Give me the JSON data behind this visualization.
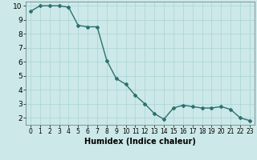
{
  "x": [
    0,
    1,
    2,
    3,
    4,
    5,
    6,
    7,
    8,
    9,
    10,
    11,
    12,
    13,
    14,
    15,
    16,
    17,
    18,
    19,
    20,
    21,
    22,
    23
  ],
  "y": [
    9.6,
    10.0,
    10.0,
    10.0,
    9.9,
    8.6,
    8.5,
    8.5,
    6.1,
    4.8,
    4.4,
    3.6,
    3.0,
    2.3,
    1.9,
    2.7,
    2.9,
    2.8,
    2.7,
    2.7,
    2.8,
    2.6,
    2.0,
    1.8
  ],
  "line_color": "#2d7070",
  "marker": "D",
  "marker_size": 2,
  "bg_color": "#cce8e8",
  "grid_color": "#aad4d4",
  "xlabel": "Humidex (Indice chaleur)",
  "ylim": [
    1.5,
    10.3
  ],
  "xlim": [
    -0.5,
    23.5
  ],
  "yticks": [
    2,
    3,
    4,
    5,
    6,
    7,
    8,
    9,
    10
  ],
  "xticks": [
    0,
    1,
    2,
    3,
    4,
    5,
    6,
    7,
    8,
    9,
    10,
    11,
    12,
    13,
    14,
    15,
    16,
    17,
    18,
    19,
    20,
    21,
    22,
    23
  ],
  "xlabel_fontsize": 7,
  "ytick_fontsize": 6.5,
  "xtick_fontsize": 5.5,
  "line_width": 1.0
}
